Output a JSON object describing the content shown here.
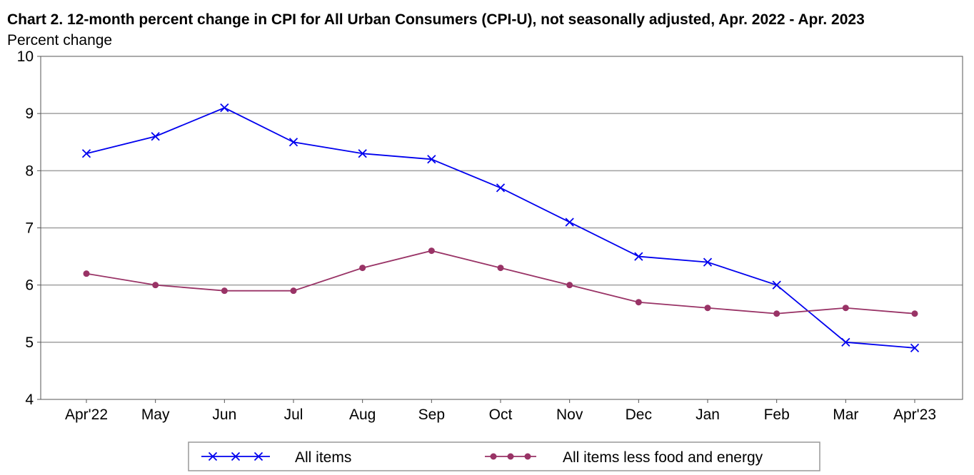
{
  "chart_data": {
    "type": "line",
    "title": "Chart 2. 12-month percent change in CPI for All Urban Consumers (CPI-U), not seasonally adjusted, Apr. 2022 - Apr. 2023",
    "ylabel": "Percent change",
    "xlabel": "",
    "categories": [
      "Apr'22",
      "May",
      "Jun",
      "Jul",
      "Aug",
      "Sep",
      "Oct",
      "Nov",
      "Dec",
      "Jan",
      "Feb",
      "Mar",
      "Apr'23"
    ],
    "ylim": [
      4,
      10
    ],
    "yticks": [
      4,
      5,
      6,
      7,
      8,
      9,
      10
    ],
    "grid": true,
    "legend_position": "bottom",
    "series": [
      {
        "name": "All items",
        "color": "#0000ee",
        "marker": "x",
        "values": [
          8.3,
          8.6,
          9.1,
          8.5,
          8.3,
          8.2,
          7.7,
          7.1,
          6.5,
          6.4,
          6.0,
          5.0,
          4.9
        ]
      },
      {
        "name": "All items less food and energy",
        "color": "#993366",
        "marker": "circle",
        "values": [
          6.2,
          6.0,
          5.9,
          5.9,
          6.3,
          6.6,
          6.3,
          6.0,
          5.7,
          5.6,
          5.5,
          5.6,
          5.5
        ]
      }
    ]
  }
}
